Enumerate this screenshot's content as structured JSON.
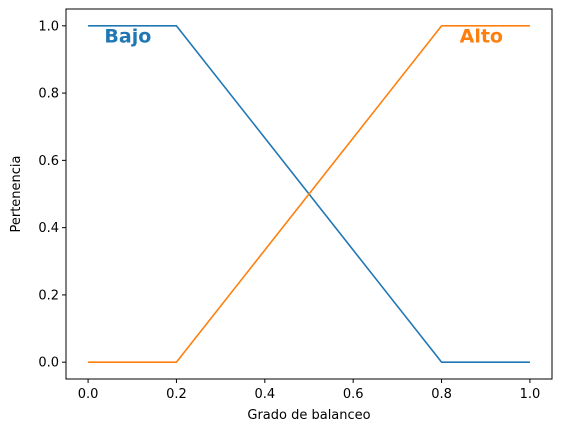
{
  "chart_data": {
    "type": "line",
    "xlabel": "Grado de balanceo",
    "ylabel": "Pertenencia",
    "xlim": [
      -0.05,
      1.05
    ],
    "ylim": [
      -0.05,
      1.05
    ],
    "xticks": [
      "0.0",
      "0.2",
      "0.4",
      "0.6",
      "0.8",
      "1.0"
    ],
    "yticks": [
      "0.0",
      "0.2",
      "0.4",
      "0.6",
      "0.8",
      "1.0"
    ],
    "grid": false,
    "series": [
      {
        "name": "Bajo",
        "color": "#1f77b4",
        "x": [
          0.0,
          0.2,
          0.8,
          1.0
        ],
        "y": [
          1.0,
          1.0,
          0.0,
          0.0
        ]
      },
      {
        "name": "Alto",
        "color": "#ff7f0e",
        "x": [
          0.0,
          0.2,
          0.8,
          1.0
        ],
        "y": [
          0.0,
          0.0,
          1.0,
          1.0
        ]
      }
    ],
    "annotations": [
      {
        "text": "Bajo",
        "x": 0.09,
        "y": 0.95,
        "color": "#1f77b4"
      },
      {
        "text": "Alto",
        "x": 0.89,
        "y": 0.95,
        "color": "#ff7f0e"
      }
    ]
  }
}
